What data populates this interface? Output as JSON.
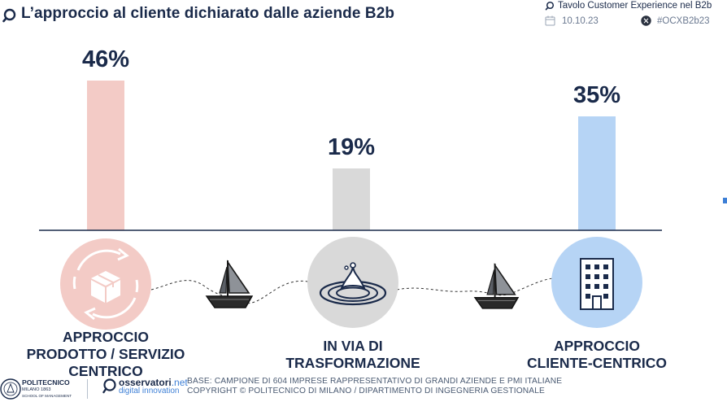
{
  "header": {
    "title": "L’approccio al cliente dichiarato dalle aziende B2b",
    "tavolo": "Tavolo Customer Experience nel B2b",
    "date": "10.10.23",
    "hashtag": "#OCXB2b23"
  },
  "chart_data": {
    "type": "bar",
    "categories": [
      "APPROCCIO PRODOTTO / SERVIZIO CENTRICO",
      "IN VIA DI TRASFORMAZIONE",
      "APPROCCIO CLIENTE-CENTRICO"
    ],
    "values": [
      46,
      19,
      35
    ],
    "value_labels": [
      "46%",
      "19%",
      "35%"
    ],
    "label_lines": [
      [
        "APPROCCIO",
        "PRODOTTO / SERVIZIO",
        "CENTRICO"
      ],
      [
        "IN VIA DI",
        "TRASFORMAZIONE"
      ],
      [
        "APPROCCIO",
        "CLIENTE-CENTRICO"
      ]
    ],
    "colors": [
      "#f3cbc6",
      "#d9d9d9",
      "#b6d4f5"
    ],
    "ylim": [
      0,
      50
    ],
    "grid": false,
    "legend": "none",
    "icons": [
      "package-cycle-icon",
      "water-drop-icon",
      "building-icon"
    ]
  },
  "footer": {
    "base": "BASE: CAMPIONE DI 604 IMPRESE RAPPRESENTATIVO DI GRANDI AZIENDE E PMI ITALIANE",
    "copyright": "COPYRIGHT © POLITECNICO DI MILANO / DIPARTIMENTO DI INGEGNERIA GESTIONALE",
    "polimi_name": "POLITECNICO",
    "polimi_sub": "MILANO 1863",
    "polimi_sub2": "SCHOOL OF MANAGEMENT",
    "osserv_name": "osservatori",
    "osserv_net": ".net",
    "osserv_sub": "digital innovation"
  }
}
